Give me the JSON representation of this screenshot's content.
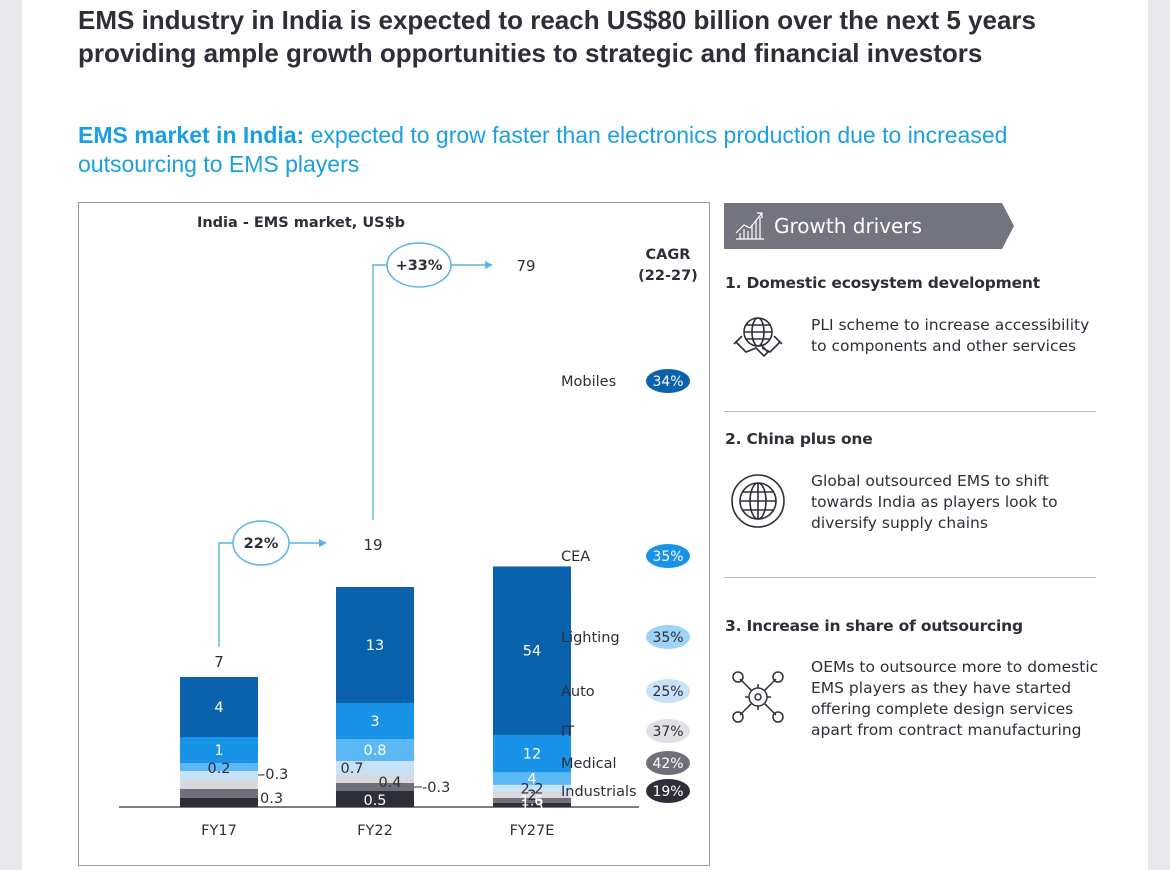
{
  "title": "EMS industry in India is expected to reach US$80 billion over the next 5 years providing ample growth opportunities to strategic and financial investors",
  "subtitle": {
    "bold": "EMS market in India:",
    "rest": " expected to grow faster than electronics production due to increased outsourcing to EMS players"
  },
  "chart_data": {
    "type": "bar",
    "stacked": true,
    "title": "India - EMS market, US$b",
    "categories": [
      "FY17",
      "FY22",
      "FY27E"
    ],
    "totals": [
      "7",
      "19",
      "79"
    ],
    "series": [
      {
        "name": "Mobiles",
        "values": [
          4,
          13,
          54
        ],
        "labels": [
          "4",
          "13",
          "54"
        ],
        "color": "#0b62ac",
        "cagr": "34%"
      },
      {
        "name": "CEA",
        "values": [
          1,
          3,
          12
        ],
        "labels": [
          "1",
          "3",
          "12"
        ],
        "color": "#1893e8",
        "cagr": "35%"
      },
      {
        "name": "Lighting",
        "values": [
          0.2,
          0.8,
          4
        ],
        "labels": [
          "0.2",
          "0.8",
          "4"
        ],
        "color": "#5cb8f2",
        "cagr": "35%"
      },
      {
        "name": "Auto",
        "values": [
          0.3,
          0.7,
          2.2
        ],
        "labels": [
          "0.3",
          "0.7",
          "2.2"
        ],
        "color": "#c7e2f7",
        "cagr": "25%"
      },
      {
        "name": "IT",
        "values": [
          0.3,
          0.4,
          2
        ],
        "labels": [
          "0.3",
          "0.4",
          "2"
        ],
        "color": "#d9d9dd",
        "cagr": "37%"
      },
      {
        "name": "Medical",
        "values": [
          0.3,
          0.3,
          1.6
        ],
        "labels": [
          "0.3",
          "0.3",
          "1.6"
        ],
        "color": "#6f6f79",
        "cagr": "42%"
      },
      {
        "name": "Industrials",
        "values": [
          0.3,
          0.5,
          1.3
        ],
        "labels": [
          "0.3",
          "0.5",
          "1.3"
        ],
        "color": "#2e2e38",
        "cagr": "19%"
      }
    ],
    "cagr_header": [
      "CAGR",
      "(22-27)"
    ],
    "growth_arrows": [
      {
        "label": "22%",
        "from": "FY17",
        "to": "FY22"
      },
      {
        "label": "+33%",
        "from": "FY22",
        "to": "FY27E"
      }
    ],
    "side_labels": [
      "-0.3",
      "0.3",
      "-0.3"
    ]
  },
  "growth_drivers": {
    "title": "Growth drivers",
    "icon": "growth-chart-icon",
    "items": [
      {
        "heading": "1. Domestic ecosystem development",
        "text": "PLI scheme to increase accessibility to components and other services",
        "icon": "handshake-globe-icon"
      },
      {
        "heading": "2. China plus one",
        "text": "Global outsourced EMS to shift towards India as players look to diversify supply chains",
        "icon": "globe-icon"
      },
      {
        "heading": "3. Increase in share of outsourcing",
        "text": "OEMs to outsource more to domestic EMS players as they have started offering complete design services apart from contract manufacturing",
        "icon": "network-gear-icon"
      }
    ]
  }
}
